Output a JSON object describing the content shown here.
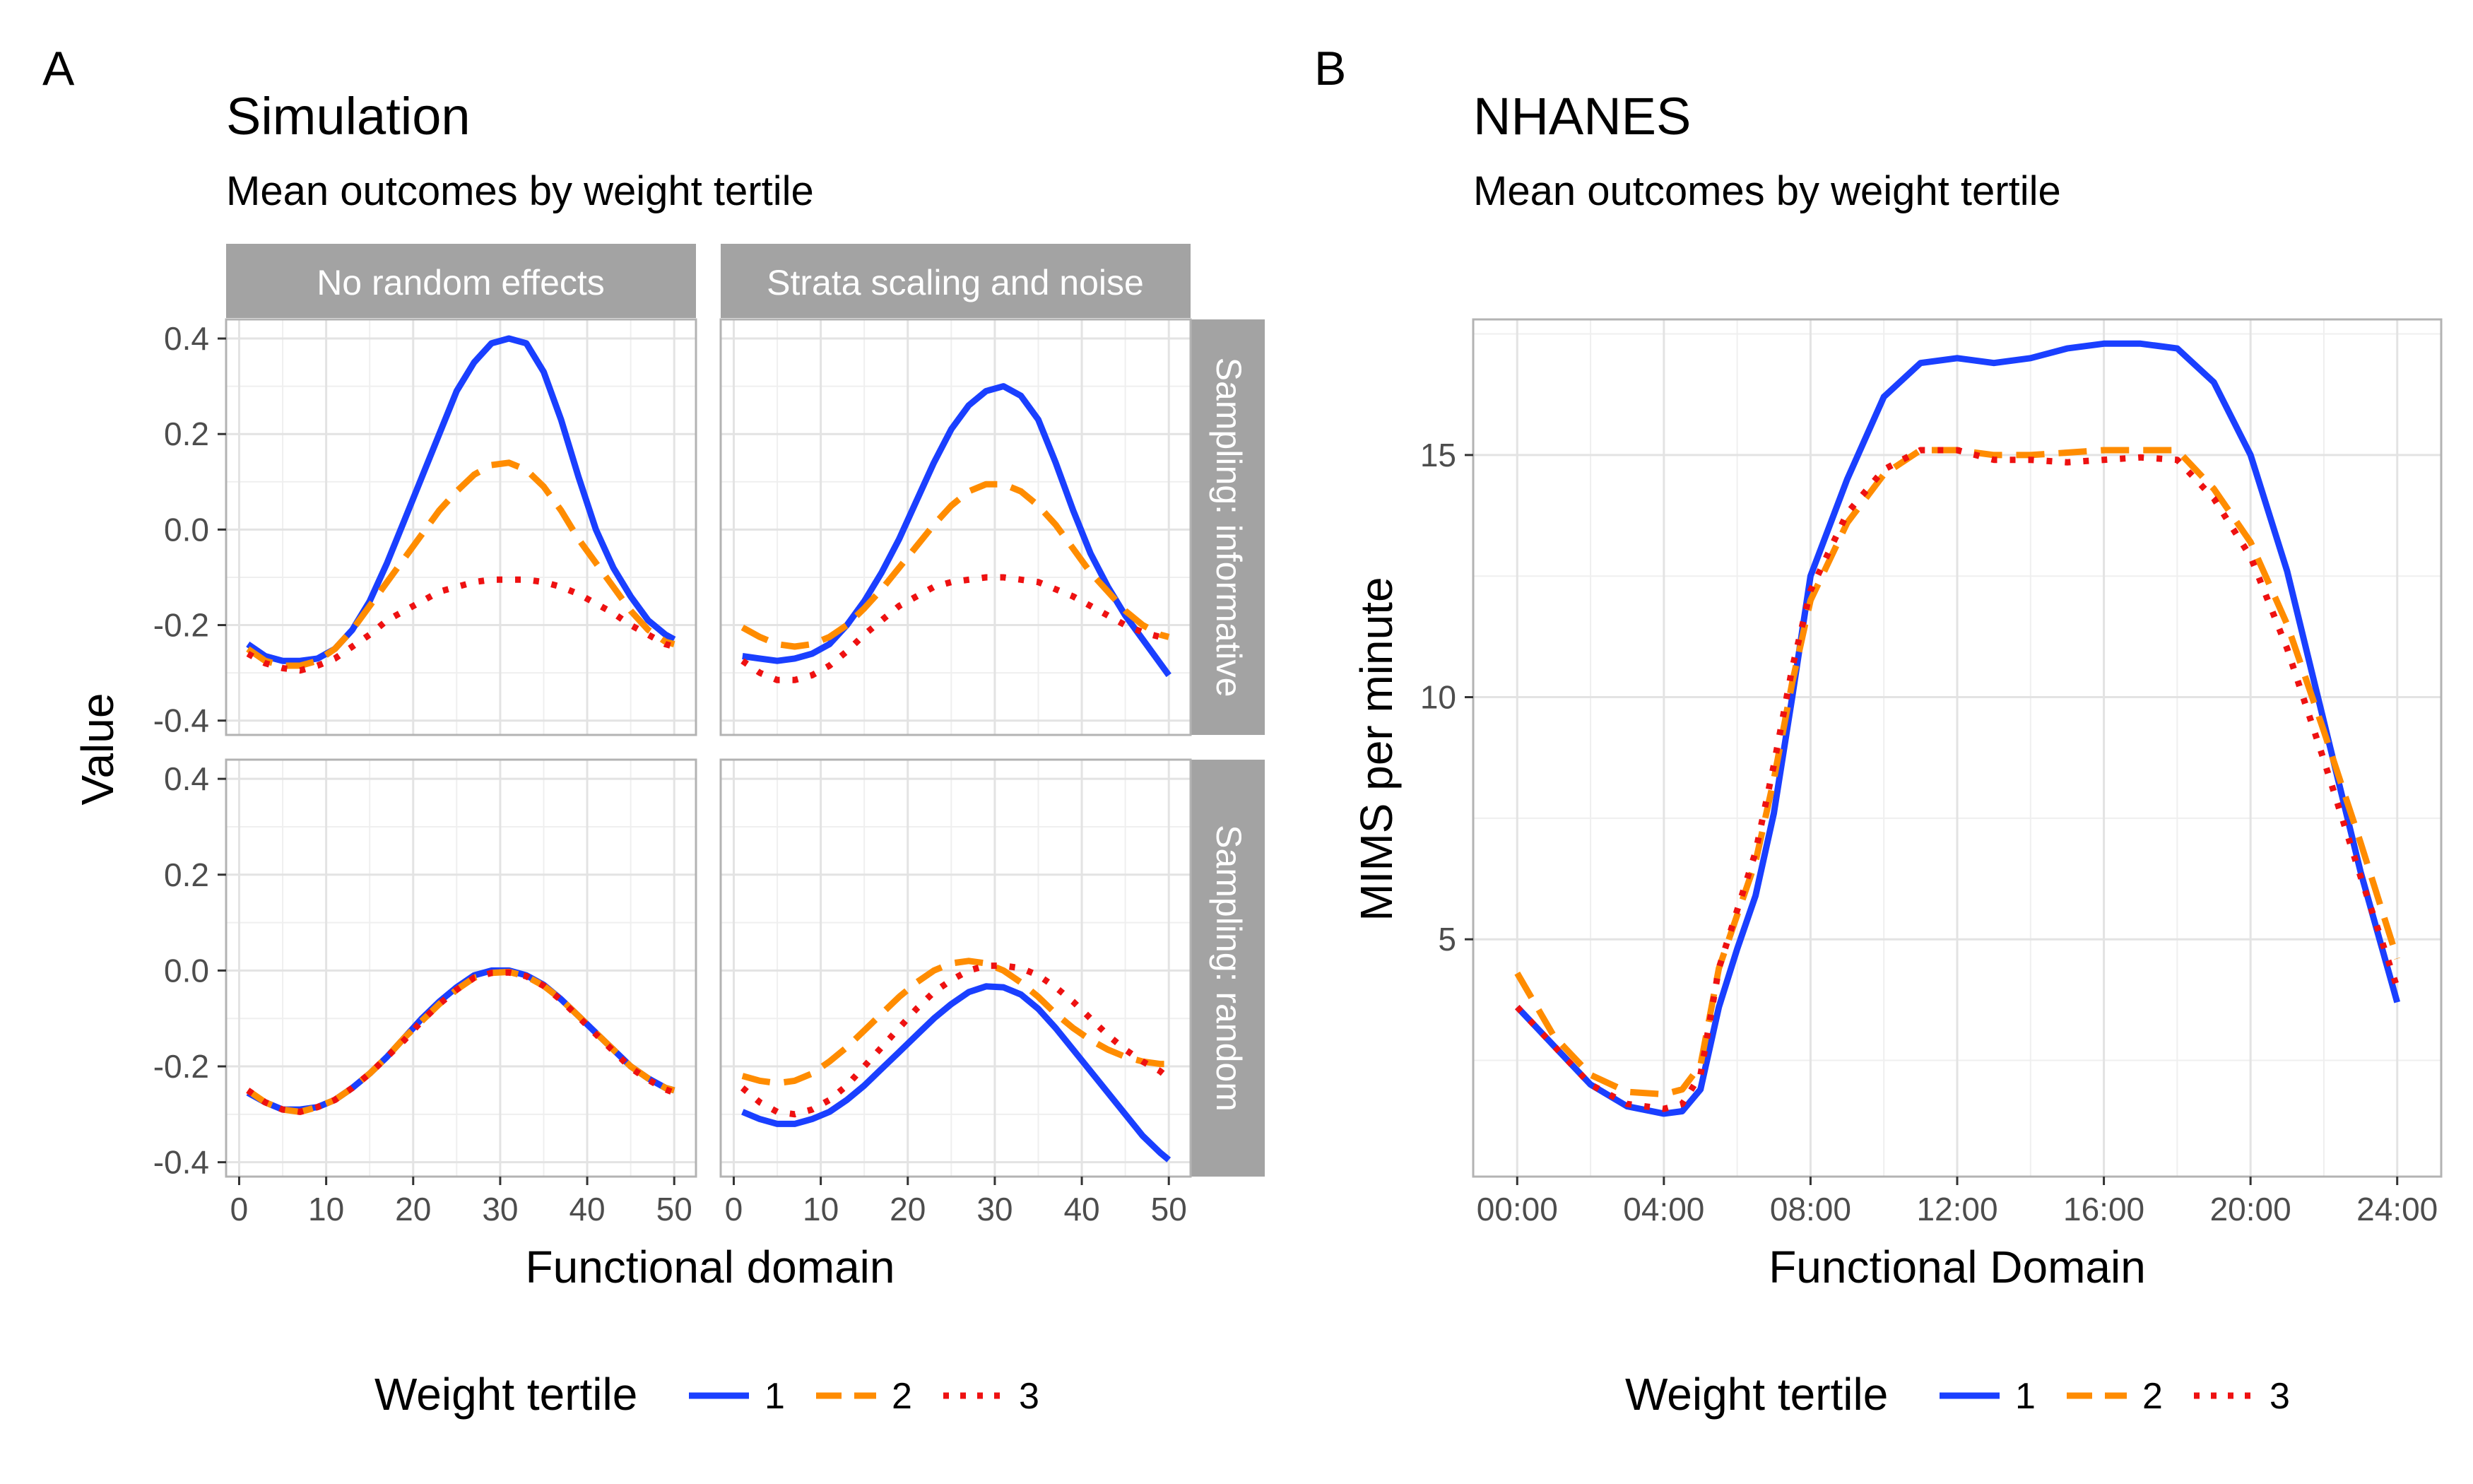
{
  "figure": {
    "panel_a": {
      "letter": "A",
      "title": "Simulation",
      "subtitle": "Mean outcomes by weight tertile",
      "ylabel": "Value",
      "xlabel": "Functional domain",
      "col_strips": [
        "No random effects",
        "Strata scaling and noise"
      ],
      "row_strips": [
        "Sampling: informative",
        "Sampling: random"
      ],
      "legend": {
        "title": "Weight tertile",
        "labels": [
          "1",
          "2",
          "3"
        ]
      }
    },
    "panel_b": {
      "letter": "B",
      "title": "NHANES",
      "subtitle": "Mean outcomes by weight tertile",
      "ylabel": "MIMS per minute",
      "xlabel": "Functional Domain",
      "legend": {
        "title": "Weight tertile",
        "labels": [
          "1",
          "2",
          "3"
        ]
      }
    }
  },
  "colors": {
    "tertile_1": "#1a3fff",
    "tertile_2": "#ff8c00",
    "tertile_3": "#ee1111",
    "strip_bg": "#a3a3a3",
    "grid": "#e3e3e3",
    "panel_border": "#b3b3b3"
  },
  "chart_data": [
    {
      "type": "line",
      "panel": "A",
      "facet": {
        "col": "No random effects",
        "row": "Sampling: informative"
      },
      "xlim": [
        -1.5,
        52.5
      ],
      "ylim": [
        -0.43,
        0.44
      ],
      "xticks": [
        0,
        10,
        20,
        30,
        40,
        50
      ],
      "yticks": [
        -0.4,
        -0.2,
        0.0,
        0.2,
        0.4
      ],
      "ytick_labels": [
        "-0.4",
        "-0.2",
        "0.0",
        "0.2",
        "0.4"
      ],
      "series": [
        {
          "name": "1",
          "x": [
            1,
            3,
            5,
            7,
            9,
            11,
            13,
            15,
            17,
            19,
            21,
            23,
            25,
            27,
            29,
            31,
            33,
            35,
            37,
            39,
            41,
            43,
            45,
            47,
            49,
            50
          ],
          "values": [
            -0.24,
            -0.265,
            -0.275,
            -0.275,
            -0.27,
            -0.25,
            -0.21,
            -0.15,
            -0.07,
            0.02,
            0.11,
            0.2,
            0.29,
            0.35,
            0.39,
            0.4,
            0.39,
            0.33,
            0.23,
            0.11,
            0.0,
            -0.08,
            -0.14,
            -0.19,
            -0.22,
            -0.23
          ]
        },
        {
          "name": "2",
          "x": [
            1,
            3,
            5,
            7,
            9,
            11,
            13,
            15,
            17,
            19,
            21,
            23,
            25,
            27,
            29,
            31,
            33,
            35,
            37,
            39,
            41,
            43,
            45,
            47,
            49,
            50
          ],
          "values": [
            -0.25,
            -0.275,
            -0.285,
            -0.285,
            -0.275,
            -0.25,
            -0.21,
            -0.16,
            -0.11,
            -0.06,
            -0.01,
            0.04,
            0.08,
            0.115,
            0.135,
            0.14,
            0.125,
            0.09,
            0.04,
            -0.02,
            -0.07,
            -0.12,
            -0.17,
            -0.21,
            -0.235,
            -0.24
          ]
        },
        {
          "name": "3",
          "x": [
            1,
            3,
            5,
            7,
            9,
            11,
            13,
            15,
            17,
            19,
            21,
            23,
            25,
            27,
            29,
            31,
            33,
            35,
            37,
            39,
            41,
            43,
            45,
            47,
            49,
            50
          ],
          "values": [
            -0.26,
            -0.28,
            -0.29,
            -0.295,
            -0.285,
            -0.27,
            -0.245,
            -0.22,
            -0.19,
            -0.17,
            -0.15,
            -0.13,
            -0.12,
            -0.11,
            -0.105,
            -0.105,
            -0.105,
            -0.11,
            -0.12,
            -0.135,
            -0.155,
            -0.175,
            -0.2,
            -0.22,
            -0.24,
            -0.245
          ]
        }
      ]
    },
    {
      "type": "line",
      "panel": "A",
      "facet": {
        "col": "Strata scaling and noise",
        "row": "Sampling: informative"
      },
      "xlim": [
        -1.5,
        52.5
      ],
      "ylim": [
        -0.43,
        0.44
      ],
      "xticks": [
        0,
        10,
        20,
        30,
        40,
        50
      ],
      "series": [
        {
          "name": "1",
          "x": [
            1,
            3,
            5,
            7,
            9,
            11,
            13,
            15,
            17,
            19,
            21,
            23,
            25,
            27,
            29,
            31,
            33,
            35,
            37,
            39,
            41,
            43,
            45,
            47,
            49,
            50
          ],
          "values": [
            -0.265,
            -0.27,
            -0.275,
            -0.27,
            -0.26,
            -0.24,
            -0.2,
            -0.15,
            -0.09,
            -0.02,
            0.06,
            0.14,
            0.21,
            0.26,
            0.29,
            0.3,
            0.28,
            0.23,
            0.14,
            0.04,
            -0.05,
            -0.12,
            -0.18,
            -0.23,
            -0.28,
            -0.305
          ]
        },
        {
          "name": "2",
          "x": [
            1,
            3,
            5,
            7,
            9,
            11,
            13,
            15,
            17,
            19,
            21,
            23,
            25,
            27,
            29,
            31,
            33,
            35,
            37,
            39,
            41,
            43,
            45,
            47,
            49,
            50
          ],
          "values": [
            -0.205,
            -0.225,
            -0.24,
            -0.245,
            -0.24,
            -0.225,
            -0.2,
            -0.165,
            -0.125,
            -0.08,
            -0.035,
            0.01,
            0.05,
            0.08,
            0.095,
            0.095,
            0.08,
            0.05,
            0.01,
            -0.04,
            -0.09,
            -0.13,
            -0.17,
            -0.2,
            -0.22,
            -0.225
          ]
        },
        {
          "name": "3",
          "x": [
            1,
            3,
            5,
            7,
            9,
            11,
            13,
            15,
            17,
            19,
            21,
            23,
            25,
            27,
            29,
            31,
            33,
            35,
            37,
            39,
            41,
            43,
            45,
            47,
            49,
            50
          ],
          "values": [
            -0.275,
            -0.3,
            -0.315,
            -0.315,
            -0.305,
            -0.285,
            -0.255,
            -0.22,
            -0.19,
            -0.16,
            -0.14,
            -0.12,
            -0.11,
            -0.105,
            -0.1,
            -0.1,
            -0.105,
            -0.11,
            -0.125,
            -0.14,
            -0.16,
            -0.18,
            -0.2,
            -0.215,
            -0.225,
            -0.23
          ]
        }
      ]
    },
    {
      "type": "line",
      "panel": "A",
      "facet": {
        "col": "No random effects",
        "row": "Sampling: random"
      },
      "xlim": [
        -1.5,
        52.5
      ],
      "ylim": [
        -0.43,
        0.44
      ],
      "xticks": [
        0,
        10,
        20,
        30,
        40,
        50
      ],
      "yticks": [
        -0.4,
        -0.2,
        0.0,
        0.2,
        0.4
      ],
      "ytick_labels": [
        "-0.4",
        "-0.2",
        "0.0",
        "0.2",
        "0.4"
      ],
      "series": [
        {
          "name": "1",
          "x": [
            1,
            3,
            5,
            7,
            9,
            11,
            13,
            15,
            17,
            19,
            21,
            23,
            25,
            27,
            29,
            31,
            33,
            35,
            37,
            39,
            41,
            43,
            45,
            47,
            49,
            50
          ],
          "values": [
            -0.255,
            -0.275,
            -0.29,
            -0.29,
            -0.285,
            -0.27,
            -0.245,
            -0.215,
            -0.18,
            -0.14,
            -0.1,
            -0.065,
            -0.035,
            -0.01,
            0.0,
            0.0,
            -0.01,
            -0.03,
            -0.06,
            -0.095,
            -0.13,
            -0.165,
            -0.2,
            -0.225,
            -0.245,
            -0.25
          ]
        },
        {
          "name": "2",
          "x": [
            1,
            3,
            5,
            7,
            9,
            11,
            13,
            15,
            17,
            19,
            21,
            23,
            25,
            27,
            29,
            31,
            33,
            35,
            37,
            39,
            41,
            43,
            45,
            47,
            49,
            50
          ],
          "values": [
            -0.25,
            -0.275,
            -0.29,
            -0.295,
            -0.285,
            -0.27,
            -0.245,
            -0.215,
            -0.18,
            -0.14,
            -0.105,
            -0.07,
            -0.04,
            -0.015,
            -0.005,
            -0.003,
            -0.012,
            -0.032,
            -0.06,
            -0.095,
            -0.13,
            -0.165,
            -0.2,
            -0.225,
            -0.245,
            -0.25
          ]
        },
        {
          "name": "3",
          "x": [
            1,
            3,
            5,
            7,
            9,
            11,
            13,
            15,
            17,
            19,
            21,
            23,
            25,
            27,
            29,
            31,
            33,
            35,
            37,
            39,
            41,
            43,
            45,
            47,
            49,
            50
          ],
          "values": [
            -0.25,
            -0.275,
            -0.29,
            -0.295,
            -0.285,
            -0.27,
            -0.245,
            -0.215,
            -0.18,
            -0.145,
            -0.105,
            -0.07,
            -0.04,
            -0.015,
            -0.005,
            -0.004,
            -0.012,
            -0.032,
            -0.062,
            -0.097,
            -0.133,
            -0.168,
            -0.203,
            -0.228,
            -0.248,
            -0.255
          ]
        }
      ]
    },
    {
      "type": "line",
      "panel": "A",
      "facet": {
        "col": "Strata scaling and noise",
        "row": "Sampling: random"
      },
      "xlim": [
        -1.5,
        52.5
      ],
      "ylim": [
        -0.43,
        0.44
      ],
      "xticks": [
        0,
        10,
        20,
        30,
        40,
        50
      ],
      "series": [
        {
          "name": "1",
          "x": [
            1,
            3,
            5,
            7,
            9,
            11,
            13,
            15,
            17,
            19,
            21,
            23,
            25,
            27,
            29,
            31,
            33,
            35,
            37,
            39,
            41,
            43,
            45,
            47,
            49,
            50
          ],
          "values": [
            -0.295,
            -0.31,
            -0.32,
            -0.32,
            -0.31,
            -0.295,
            -0.27,
            -0.24,
            -0.205,
            -0.17,
            -0.135,
            -0.1,
            -0.07,
            -0.045,
            -0.033,
            -0.035,
            -0.05,
            -0.08,
            -0.12,
            -0.165,
            -0.21,
            -0.255,
            -0.3,
            -0.345,
            -0.38,
            -0.395
          ]
        },
        {
          "name": "2",
          "x": [
            1,
            3,
            5,
            7,
            9,
            11,
            13,
            15,
            17,
            19,
            21,
            23,
            25,
            27,
            29,
            31,
            33,
            35,
            37,
            39,
            41,
            43,
            45,
            47,
            49,
            50
          ],
          "values": [
            -0.22,
            -0.23,
            -0.235,
            -0.23,
            -0.215,
            -0.19,
            -0.16,
            -0.125,
            -0.09,
            -0.055,
            -0.025,
            0.0,
            0.015,
            0.02,
            0.015,
            0.0,
            -0.025,
            -0.055,
            -0.09,
            -0.12,
            -0.145,
            -0.165,
            -0.18,
            -0.19,
            -0.195,
            -0.195
          ]
        },
        {
          "name": "3",
          "x": [
            1,
            3,
            5,
            7,
            9,
            11,
            13,
            15,
            17,
            19,
            21,
            23,
            25,
            27,
            29,
            31,
            33,
            35,
            37,
            39,
            41,
            43,
            45,
            47,
            49,
            50
          ],
          "values": [
            -0.245,
            -0.275,
            -0.295,
            -0.3,
            -0.29,
            -0.27,
            -0.24,
            -0.2,
            -0.16,
            -0.12,
            -0.08,
            -0.045,
            -0.02,
            0.0,
            0.01,
            0.01,
            0.005,
            -0.01,
            -0.035,
            -0.065,
            -0.1,
            -0.135,
            -0.165,
            -0.19,
            -0.21,
            -0.225
          ]
        }
      ]
    },
    {
      "type": "line",
      "panel": "B",
      "title": "NHANES",
      "subtitle": "Mean outcomes by weight tertile",
      "xlabel": "Functional Domain",
      "ylabel": "MIMS per minute",
      "x_unit": "hours",
      "xlim": [
        -1.2,
        25.2
      ],
      "ylim": [
        0.1,
        17.8
      ],
      "xticks": [
        0,
        4,
        8,
        12,
        16,
        20,
        24
      ],
      "xtick_labels": [
        "00:00",
        "04:00",
        "08:00",
        "12:00",
        "16:00",
        "20:00",
        "24:00"
      ],
      "yticks": [
        5,
        10,
        15
      ],
      "ytick_labels": [
        "5",
        "10",
        "15"
      ],
      "series": [
        {
          "name": "1",
          "x": [
            0,
            1,
            2,
            3,
            4,
            4.5,
            5,
            5.5,
            6,
            6.5,
            7,
            7.5,
            8,
            9,
            10,
            11,
            12,
            13,
            14,
            15,
            16,
            17,
            18,
            19,
            20,
            21,
            22,
            23,
            24
          ],
          "values": [
            3.6,
            2.8,
            2.0,
            1.55,
            1.4,
            1.45,
            1.9,
            3.6,
            4.8,
            5.9,
            7.6,
            10.0,
            12.5,
            14.5,
            16.2,
            16.9,
            17.0,
            16.9,
            17.0,
            17.2,
            17.3,
            17.3,
            17.2,
            16.5,
            15.0,
            12.6,
            9.5,
            6.4,
            3.7
          ]
        },
        {
          "name": "2",
          "x": [
            0,
            1,
            2,
            3,
            4,
            4.5,
            5,
            5.5,
            6,
            6.5,
            7,
            7.5,
            8,
            9,
            10,
            11,
            12,
            13,
            14,
            15,
            16,
            17,
            18,
            19,
            20,
            21,
            22,
            23,
            24
          ],
          "values": [
            4.3,
            3.0,
            2.2,
            1.85,
            1.8,
            1.9,
            2.4,
            4.4,
            5.5,
            6.6,
            8.3,
            10.3,
            12.0,
            13.6,
            14.6,
            15.1,
            15.1,
            15.0,
            15.0,
            15.05,
            15.1,
            15.1,
            15.1,
            14.3,
            13.2,
            11.5,
            9.3,
            7.0,
            4.6
          ]
        },
        {
          "name": "3",
          "x": [
            0,
            1,
            2,
            3,
            4,
            4.5,
            5,
            5.5,
            6,
            6.5,
            7,
            7.5,
            8,
            9,
            10,
            11,
            12,
            13,
            14,
            15,
            16,
            17,
            18,
            19,
            20,
            21,
            22,
            23,
            24
          ],
          "values": [
            3.6,
            2.8,
            2.0,
            1.6,
            1.5,
            1.6,
            2.2,
            4.4,
            5.6,
            6.8,
            8.6,
            10.6,
            12.2,
            13.8,
            14.7,
            15.1,
            15.1,
            14.9,
            14.9,
            14.85,
            14.9,
            14.95,
            14.9,
            14.1,
            12.9,
            11.0,
            8.7,
            6.3,
            4.0
          ]
        }
      ]
    }
  ]
}
